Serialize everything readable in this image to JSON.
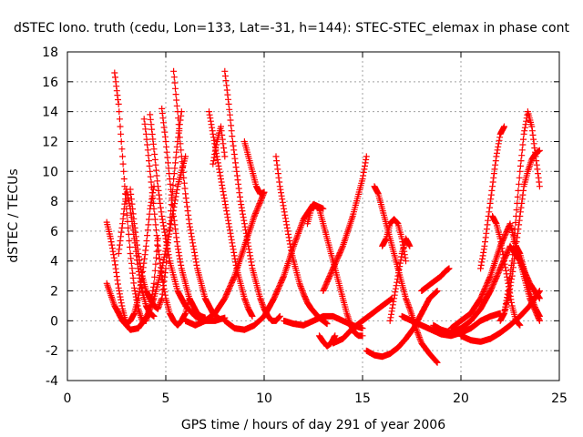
{
  "chart_data": {
    "type": "scatter",
    "title": "dSTEC Iono. truth (cedu, Lon=133, Lat=-31, h=144): STEC-STEC_elemax in phase cont",
    "xlabel": "GPS time / hours of day 291 of year 2006",
    "ylabel": "dSTEC  / TECUs",
    "xlim": [
      0,
      25
    ],
    "ylim": [
      -4,
      18
    ],
    "xticks": [
      0,
      5,
      10,
      15,
      20,
      25
    ],
    "yticks": [
      -4,
      -2,
      0,
      2,
      4,
      6,
      8,
      10,
      12,
      14,
      16,
      18
    ],
    "grid": true,
    "marker": "+",
    "color": "#ff0000",
    "series": [
      {
        "x": [
          2.0,
          2.2,
          2.4,
          2.6,
          2.8,
          3.0,
          3.2,
          3.4,
          3.6,
          3.8,
          4.0,
          4.2,
          4.4
        ],
        "y": [
          6.6,
          5.5,
          4.0,
          2.2,
          0.8,
          -0.2,
          0.0,
          0.5,
          1.5,
          3.0,
          5.0,
          7.5,
          9.0
        ]
      },
      {
        "x": [
          2.4,
          2.6,
          2.8,
          3.0,
          3.2,
          3.4,
          3.6,
          3.8,
          4.0,
          4.2,
          4.4,
          4.6
        ],
        "y": [
          16.6,
          14.5,
          11.0,
          7.5,
          4.5,
          2.2,
          0.8,
          0.0,
          0.0,
          0.8,
          2.5,
          5.5
        ]
      },
      {
        "x": [
          2.0,
          2.4,
          2.8,
          3.2,
          3.6,
          4.0,
          4.4,
          4.8,
          5.2,
          5.6,
          6.0
        ],
        "y": [
          2.5,
          1.0,
          0.0,
          -0.6,
          -0.5,
          0.2,
          1.5,
          3.5,
          6.0,
          9.0,
          11.0
        ]
      },
      {
        "x": [
          2.6,
          2.8,
          3.0,
          3.2,
          3.4,
          3.6,
          3.8,
          4.0,
          4.2,
          4.4
        ],
        "y": [
          4.5,
          6.5,
          8.8,
          7.5,
          5.5,
          3.5,
          2.0,
          1.0,
          0.5,
          0.3
        ]
      },
      {
        "x": [
          3.2,
          3.4,
          3.6,
          3.8,
          4.0,
          4.2,
          4.4,
          4.6,
          4.8,
          5.0,
          5.2,
          5.4,
          5.6,
          5.8
        ],
        "y": [
          8.8,
          6.5,
          4.5,
          3.0,
          2.0,
          1.5,
          1.0,
          0.8,
          1.5,
          3.5,
          6.5,
          9.5,
          12.0,
          14.0
        ]
      },
      {
        "x": [
          3.9,
          4.0,
          4.2,
          4.4,
          4.6,
          4.8,
          5.0,
          5.2,
          5.4,
          5.6,
          5.8,
          6.0,
          6.2
        ],
        "y": [
          13.5,
          12.5,
          10.0,
          7.5,
          5.0,
          3.0,
          1.5,
          0.5,
          0.0,
          -0.3,
          0.0,
          0.5,
          1.5
        ]
      },
      {
        "x": [
          4.2,
          4.4,
          4.6,
          4.8,
          5.0,
          5.2,
          5.6,
          6.0,
          6.5,
          7.0,
          7.5,
          8.0
        ],
        "y": [
          13.8,
          11.5,
          9.0,
          7.0,
          5.5,
          4.0,
          2.0,
          1.0,
          0.3,
          0.0,
          0.0,
          0.2
        ]
      },
      {
        "x": [
          4.8,
          5.0,
          5.2,
          5.4,
          5.6,
          5.8,
          6.0,
          6.2,
          6.4,
          6.6,
          6.8,
          7.0
        ],
        "y": [
          14.2,
          12.0,
          9.5,
          7.0,
          5.0,
          3.5,
          2.5,
          1.5,
          1.0,
          0.5,
          0.3,
          0.2
        ]
      },
      {
        "x": [
          5.4,
          5.6,
          5.8,
          6.0,
          6.2,
          6.4,
          6.6,
          6.8,
          7.0,
          7.2,
          7.4,
          7.6
        ],
        "y": [
          16.7,
          14.0,
          11.0,
          8.5,
          6.5,
          5.0,
          3.5,
          2.5,
          1.5,
          1.0,
          0.5,
          0.3
        ]
      },
      {
        "x": [
          6.0,
          6.5,
          7.0,
          7.5,
          8.0,
          8.5,
          9.0,
          9.5,
          10.0
        ],
        "y": [
          0.0,
          -0.3,
          0.0,
          0.5,
          1.5,
          3.0,
          5.0,
          7.0,
          8.6
        ]
      },
      {
        "x": [
          7.2,
          7.4,
          7.6,
          7.8,
          8.0,
          8.2,
          8.4,
          8.6,
          8.8,
          9.0,
          9.2,
          9.4
        ],
        "y": [
          14.0,
          12.5,
          11.0,
          9.5,
          8.0,
          6.5,
          5.0,
          3.5,
          2.5,
          1.5,
          0.8,
          0.3
        ]
      },
      {
        "x": [
          7.4,
          7.6,
          7.8,
          8.0
        ],
        "y": [
          10.5,
          12.0,
          13.0,
          11.0
        ]
      },
      {
        "x": [
          8.0,
          8.2,
          8.4,
          8.6,
          8.8,
          9.0,
          9.2,
          9.4,
          9.6,
          9.8,
          10.0,
          10.2,
          10.4,
          10.6,
          10.8
        ],
        "y": [
          16.7,
          14.5,
          12.0,
          10.0,
          8.0,
          6.5,
          5.0,
          3.5,
          2.5,
          1.5,
          0.8,
          0.3,
          0.0,
          0.0,
          0.3
        ]
      },
      {
        "x": [
          9.0,
          9.2,
          9.4,
          9.6,
          9.8,
          10.0
        ],
        "y": [
          12.0,
          11.0,
          10.0,
          9.0,
          8.5,
          8.6
        ]
      },
      {
        "x": [
          8.0,
          8.5,
          9.0,
          9.5,
          10.0,
          10.5,
          11.0,
          11.5,
          12.0,
          12.5,
          13.0
        ],
        "y": [
          0.0,
          -0.5,
          -0.6,
          -0.3,
          0.3,
          1.5,
          3.0,
          5.0,
          6.8,
          7.8,
          7.5
        ]
      },
      {
        "x": [
          10.6,
          10.8,
          11.0,
          11.2,
          11.4,
          11.6,
          11.8,
          12.0,
          12.2,
          12.4,
          12.6,
          12.8,
          13.0,
          13.2
        ],
        "y": [
          11.0,
          9.0,
          7.5,
          6.0,
          4.5,
          3.5,
          2.5,
          1.8,
          1.2,
          0.8,
          0.5,
          0.2,
          0.0,
          -0.2
        ]
      },
      {
        "x": [
          11.0,
          11.5,
          12.0,
          12.5,
          13.0,
          13.5,
          14.0,
          14.5,
          15.0
        ],
        "y": [
          0.0,
          -0.2,
          -0.3,
          0.0,
          0.3,
          0.3,
          0.0,
          -0.3,
          -0.5
        ]
      },
      {
        "x": [
          12.2,
          12.4,
          12.6,
          12.8,
          13.0,
          13.2,
          13.4,
          13.6,
          13.8,
          14.0,
          14.2,
          14.4,
          14.6,
          14.8,
          15.0
        ],
        "y": [
          6.5,
          7.5,
          7.7,
          7.5,
          6.5,
          5.5,
          4.5,
          3.5,
          2.5,
          1.5,
          0.5,
          -0.3,
          -0.8,
          -1.0,
          -1.0
        ]
      },
      {
        "x": [
          12.8,
          13.0,
          13.2,
          13.4,
          13.6
        ],
        "y": [
          -1.0,
          -1.4,
          -1.7,
          -1.5,
          -1.0
        ]
      },
      {
        "x": [
          13.0,
          13.5,
          14.0,
          14.5,
          15.0,
          15.2
        ],
        "y": [
          2.0,
          3.5,
          5.0,
          7.0,
          9.5,
          11.0
        ]
      },
      {
        "x": [
          13.5,
          14.0,
          14.5,
          15.0,
          15.5,
          16.0,
          16.5
        ],
        "y": [
          -1.5,
          -1.2,
          -0.5,
          0.0,
          0.5,
          1.0,
          1.5
        ]
      },
      {
        "x": [
          15.2,
          15.6,
          16.0,
          16.4,
          16.8,
          17.2,
          17.6,
          18.0,
          18.4,
          18.8
        ],
        "y": [
          -2.0,
          -2.3,
          -2.4,
          -2.2,
          -1.8,
          -1.2,
          -0.5,
          0.5,
          1.5,
          2.0
        ]
      },
      {
        "x": [
          15.6,
          15.8,
          16.0,
          16.2,
          16.4,
          16.6,
          16.8,
          17.0,
          17.2,
          17.4,
          17.6,
          17.8,
          18.0,
          18.4,
          18.8
        ],
        "y": [
          9.0,
          8.5,
          7.5,
          6.5,
          5.5,
          4.5,
          3.5,
          2.5,
          1.5,
          0.8,
          0.0,
          -0.8,
          -1.5,
          -2.2,
          -2.8
        ]
      },
      {
        "x": [
          16.0,
          16.2,
          16.4,
          16.6,
          16.8,
          17.0,
          17.2
        ],
        "y": [
          5.0,
          5.5,
          6.5,
          6.8,
          6.5,
          5.5,
          4.0
        ]
      },
      {
        "x": [
          16.4,
          16.6,
          16.8,
          17.0,
          17.2,
          17.4
        ],
        "y": [
          0.0,
          1.5,
          3.0,
          4.5,
          5.5,
          5.0
        ]
      },
      {
        "x": [
          17.0,
          17.5,
          18.0,
          18.5,
          19.0,
          19.5,
          20.0,
          20.5,
          21.0,
          21.5,
          22.0
        ],
        "y": [
          0.3,
          0.0,
          -0.3,
          -0.6,
          -0.9,
          -1.0,
          -0.8,
          -0.5,
          0.0,
          0.3,
          0.5
        ]
      },
      {
        "x": [
          18.0,
          18.5,
          19.0,
          19.2,
          19.4
        ],
        "y": [
          2.0,
          2.5,
          3.0,
          3.3,
          3.5
        ]
      },
      {
        "x": [
          18.6,
          19.0,
          19.5,
          20.0,
          20.5,
          21.0,
          21.5,
          22.0,
          22.5,
          23.0,
          23.5,
          24.0
        ],
        "y": [
          -0.3,
          -0.6,
          -0.8,
          -0.5,
          0.0,
          0.8,
          2.0,
          3.5,
          5.0,
          4.0,
          2.5,
          1.5
        ]
      },
      {
        "x": [
          19.5,
          20.0,
          20.5,
          21.0,
          21.5,
          22.0,
          22.5,
          23.0,
          23.5,
          24.0
        ],
        "y": [
          -0.5,
          0.0,
          0.5,
          1.5,
          3.0,
          5.0,
          6.5,
          4.0,
          1.5,
          0.0
        ]
      },
      {
        "x": [
          20.0,
          20.5,
          21.0,
          21.5,
          22.0,
          22.5,
          23.0,
          23.5,
          24.0
        ],
        "y": [
          -1.0,
          -1.3,
          -1.4,
          -1.2,
          -0.8,
          -0.3,
          0.3,
          1.0,
          2.0
        ]
      },
      {
        "x": [
          21.0,
          21.2,
          21.4,
          21.6,
          21.8,
          22.0,
          22.2
        ],
        "y": [
          3.5,
          5.0,
          7.0,
          9.0,
          11.0,
          12.5,
          13.0
        ]
      },
      {
        "x": [
          21.6,
          21.8,
          22.0,
          22.2,
          22.4,
          22.6,
          22.8,
          23.0
        ],
        "y": [
          7.0,
          6.5,
          5.5,
          4.0,
          2.5,
          1.0,
          0.0,
          -0.3
        ]
      },
      {
        "x": [
          22.0,
          22.2,
          22.4,
          22.6,
          22.8,
          23.0,
          23.2,
          23.4,
          23.6,
          23.8,
          24.0
        ],
        "y": [
          0.0,
          0.5,
          1.5,
          3.0,
          5.0,
          7.0,
          9.0,
          10.0,
          10.8,
          11.2,
          11.4
        ]
      },
      {
        "x": [
          22.2,
          22.4,
          22.6,
          22.8,
          23.0,
          23.2,
          23.4,
          23.6,
          23.8,
          24.0
        ],
        "y": [
          0.5,
          2.0,
          4.0,
          7.0,
          10.0,
          12.5,
          14.0,
          13.0,
          11.0,
          9.0
        ]
      },
      {
        "x": [
          22.8,
          23.0,
          23.2,
          23.4,
          23.6,
          23.8,
          24.0
        ],
        "y": [
          5.0,
          4.5,
          3.5,
          2.5,
          1.5,
          0.8,
          0.3
        ]
      }
    ]
  }
}
